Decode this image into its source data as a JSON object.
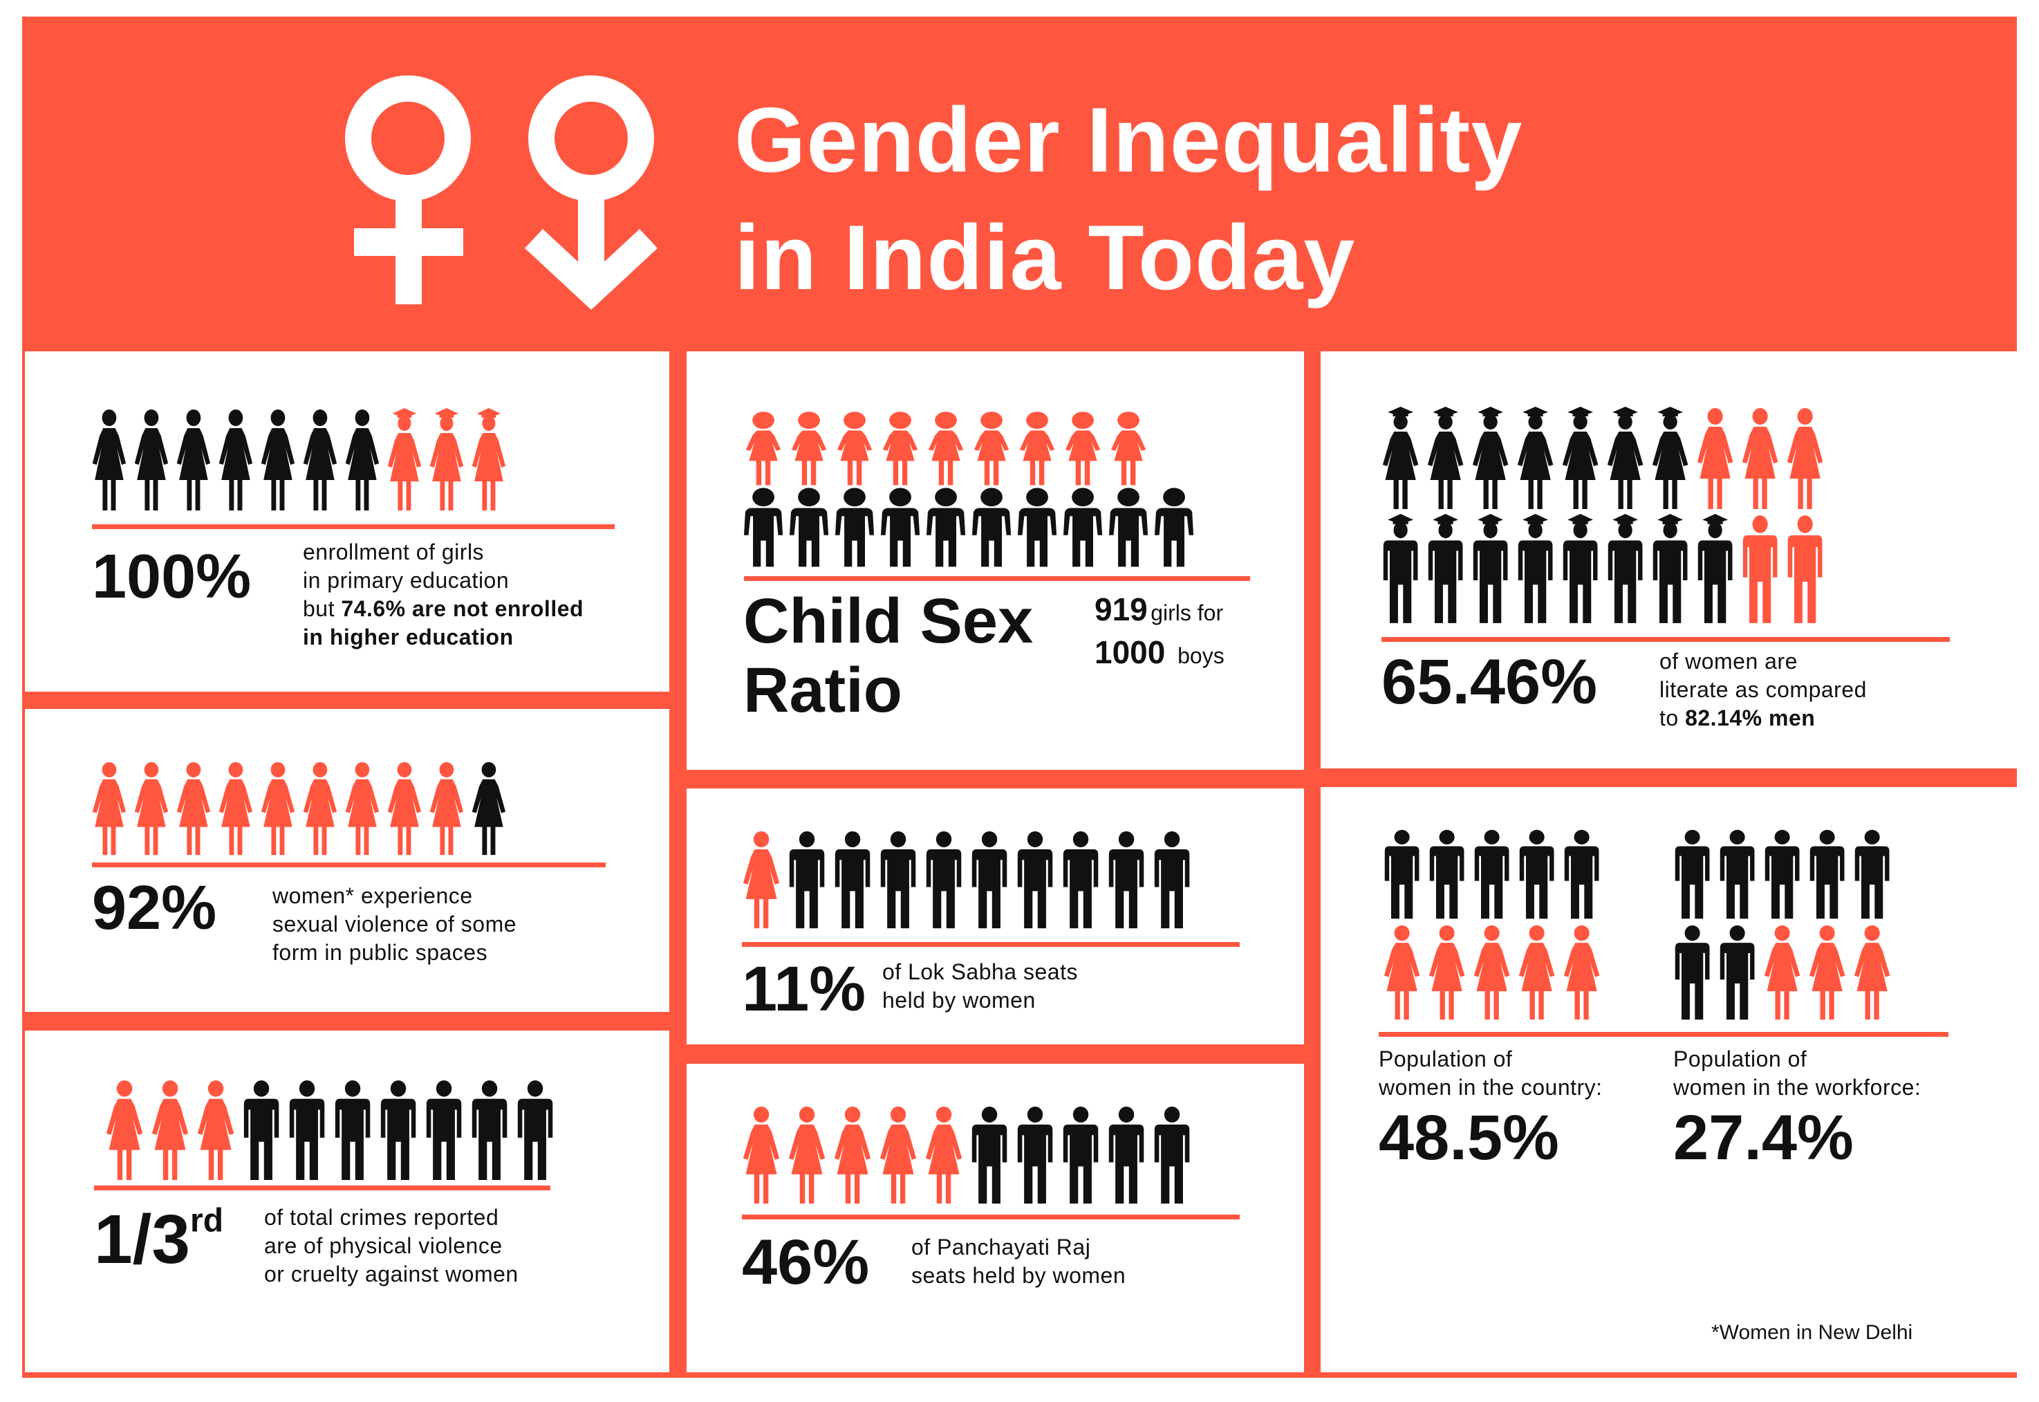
{
  "title": {
    "line1": "Gender Inequality",
    "line2": "in India Today"
  },
  "colors": {
    "accent": "#FF5640",
    "dark": "#111111",
    "background": "#FFFFFF"
  },
  "header_icons": [
    "female-symbol-icon",
    "female-symbol-arrow-down-icon"
  ],
  "enrollment": {
    "stat": "100%",
    "line1": "enrollment of girls",
    "line2": "in primary education",
    "line3_prefix": "but ",
    "line3_bold": "74.6% are not enrolled",
    "line4_bold": "in higher education",
    "icons": [
      "girl",
      "girl",
      "girl",
      "girl",
      "girl",
      "girl",
      "girl",
      "girl-grad",
      "girl-grad",
      "girl-grad"
    ]
  },
  "violence": {
    "stat": "92%",
    "line1": "women* experience",
    "line2": "sexual violence of some",
    "line3": "form in public spaces",
    "icons": [
      "woman",
      "woman",
      "woman",
      "woman",
      "woman",
      "woman",
      "woman",
      "woman",
      "woman",
      "woman-dark"
    ]
  },
  "crimes": {
    "stat_main": "1/3",
    "stat_sup": "rd",
    "line1": "of total crimes reported",
    "line2": "are of physical violence",
    "line3": "or cruelty against women",
    "icons": [
      "woman",
      "woman",
      "woman",
      "man",
      "man",
      "man",
      "man",
      "man",
      "man",
      "man"
    ]
  },
  "child_sex_ratio": {
    "label_line1": "Child Sex",
    "label_line2": "Ratio",
    "girls_value": "919",
    "girls_text": "girls for",
    "boys_value": "1000",
    "boys_text": "boys",
    "row1": [
      "kid-girl",
      "kid-girl",
      "kid-girl",
      "kid-girl",
      "kid-girl",
      "kid-girl",
      "kid-girl",
      "kid-girl",
      "kid-girl"
    ],
    "row2": [
      "kid-boy",
      "kid-boy",
      "kid-boy",
      "kid-boy",
      "kid-boy",
      "kid-boy",
      "kid-boy",
      "kid-boy",
      "kid-boy",
      "kid-boy"
    ]
  },
  "lok_sabha": {
    "stat": "11%",
    "line1": "of Lok Sabha seats",
    "line2": "held by women",
    "icons": [
      "woman",
      "man",
      "man",
      "man",
      "man",
      "man",
      "man",
      "man",
      "man",
      "man"
    ]
  },
  "panchayati": {
    "stat": "46%",
    "line1": "of Panchayati Raj",
    "line2": "seats held by women",
    "icons": [
      "woman",
      "woman",
      "woman",
      "woman",
      "woman",
      "man",
      "man",
      "man",
      "man",
      "man"
    ]
  },
  "literacy": {
    "stat": "65.46%",
    "line1": "of women are",
    "line2": "literate as compared",
    "line3_prefix": "to ",
    "line3_bold": "82.14% men",
    "row1": [
      "grad-w-dark",
      "grad-w-dark",
      "grad-w-dark",
      "grad-w-dark",
      "grad-w-dark",
      "grad-w-dark",
      "grad-w-dark",
      "woman",
      "woman",
      "woman"
    ],
    "row2": [
      "grad-m-dark",
      "grad-m-dark",
      "grad-m-dark",
      "grad-m-dark",
      "grad-m-dark",
      "grad-m-dark",
      "grad-m-dark",
      "grad-m-dark",
      "man-red",
      "man-red"
    ]
  },
  "population": {
    "country_label1": "Population of",
    "country_label2": "women in the country:",
    "country_value": "48.5%",
    "workforce_label1": "Population of",
    "workforce_label2": "women in the workforce:",
    "workforce_value": "27.4%",
    "country_row1": [
      "man",
      "man",
      "man",
      "man",
      "man"
    ],
    "country_row2": [
      "woman",
      "woman",
      "woman",
      "woman",
      "woman"
    ],
    "work_row1": [
      "man",
      "man",
      "man",
      "man",
      "man"
    ],
    "work_row2": [
      "man",
      "man",
      "woman",
      "woman",
      "woman"
    ]
  },
  "footnote": "*Women in New Delhi"
}
